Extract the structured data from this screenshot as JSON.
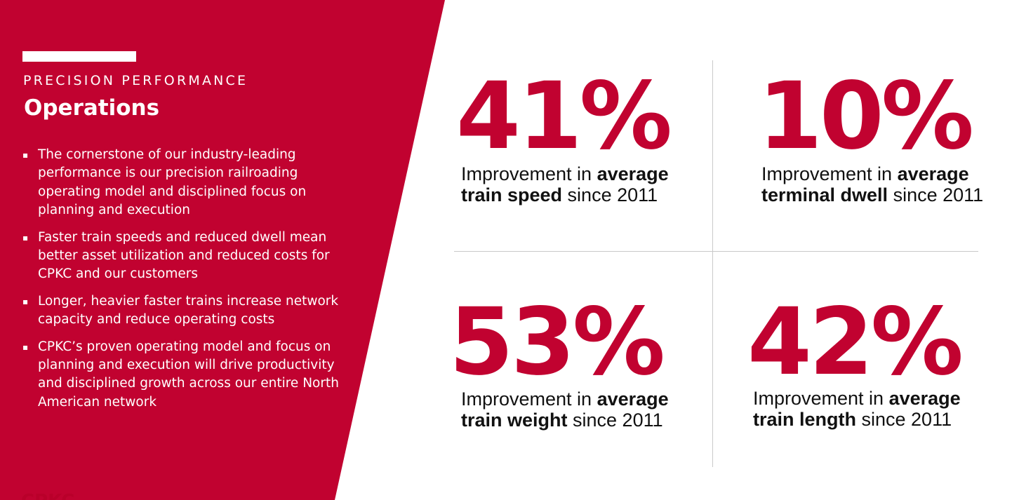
{
  "colors": {
    "brand_red": "#c10230",
    "text_dark": "#111111",
    "divider": "#c9c9c9"
  },
  "left_panel": {
    "kicker": "PRECISION PERFORMANCE",
    "title": "Operations",
    "bullet_symbol": "▪",
    "bullets": [
      "The cornerstone of our industry-leading performance is our precision railroading operating model and disciplined focus on planning and execution",
      "Faster train speeds and reduced dwell mean better asset utilization and reduced costs for CPKC and our customers",
      "Longer, heavier faster trains increase network capacity and reduce operating costs",
      "CPKC’s proven operating model and focus on planning and execution will drive productivity and disciplined growth across our entire North American network"
    ],
    "footer_logo_text": "CPKC"
  },
  "stats": [
    {
      "value": "41%",
      "prefix": "Improvement in ",
      "bold1": "average",
      "bold2": "train speed",
      "suffix": " since 2011"
    },
    {
      "value": "10%",
      "prefix": "Improvement in ",
      "bold1": "average",
      "bold2": "terminal dwell",
      "suffix": " since 2011"
    },
    {
      "value": "53%",
      "prefix": "Improvement in ",
      "bold1": "average",
      "bold2": "train weight",
      "suffix": " since 2011"
    },
    {
      "value": "42%",
      "prefix": "Improvement in ",
      "bold1": "average",
      "bold2": "train length",
      "suffix": " since 2011"
    }
  ]
}
